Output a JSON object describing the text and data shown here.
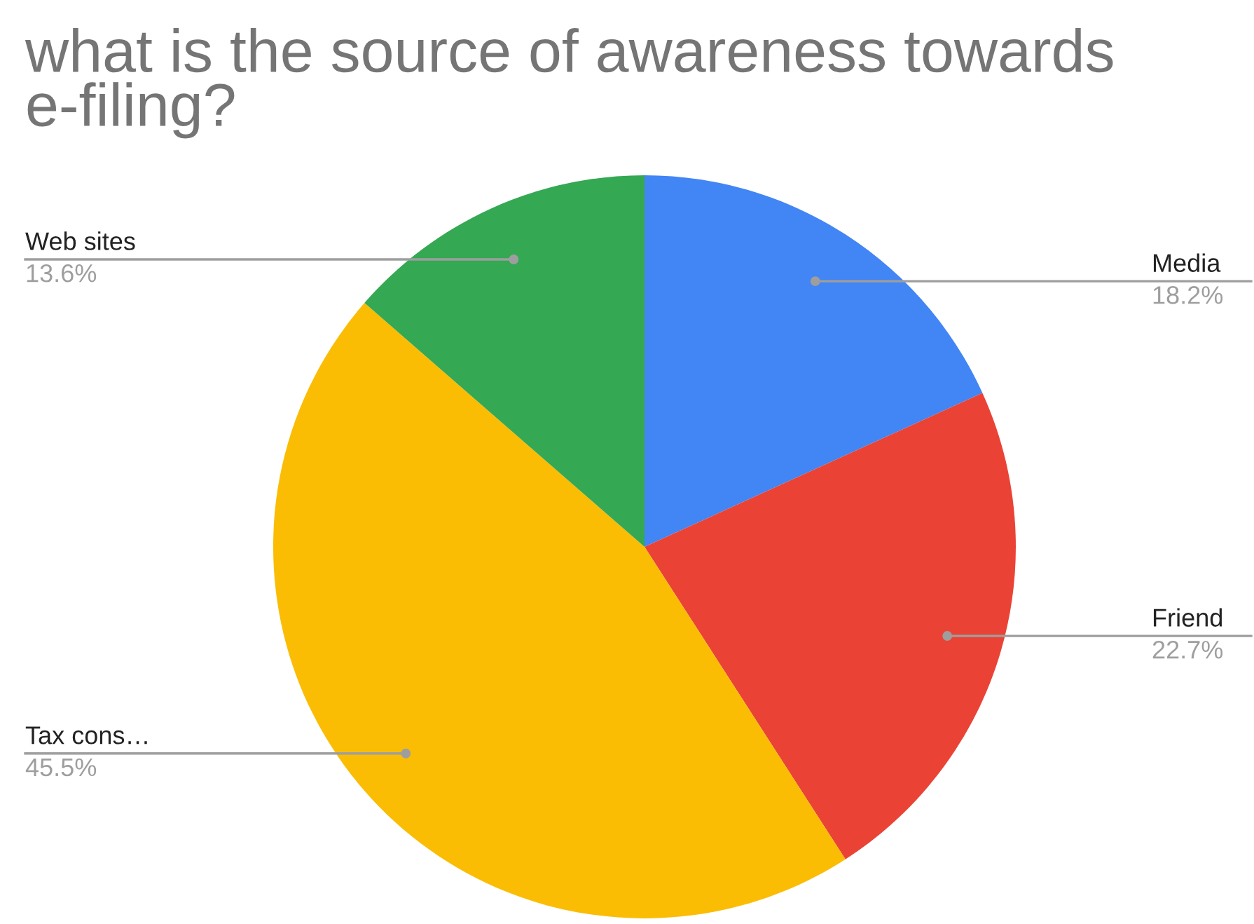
{
  "chart_data": {
    "type": "pie",
    "title": "what is the source of awareness towards e-filing?",
    "categories": [
      "Media",
      "Friend",
      "Tax cons…",
      "Web sites"
    ],
    "values": [
      18.2,
      22.7,
      45.5,
      13.6
    ],
    "value_labels": [
      "18.2%",
      "22.7%",
      "45.5%",
      "13.6%"
    ],
    "colors": [
      "#4285f4",
      "#ea4335",
      "#fbbc04",
      "#34a853"
    ],
    "legend": false
  }
}
